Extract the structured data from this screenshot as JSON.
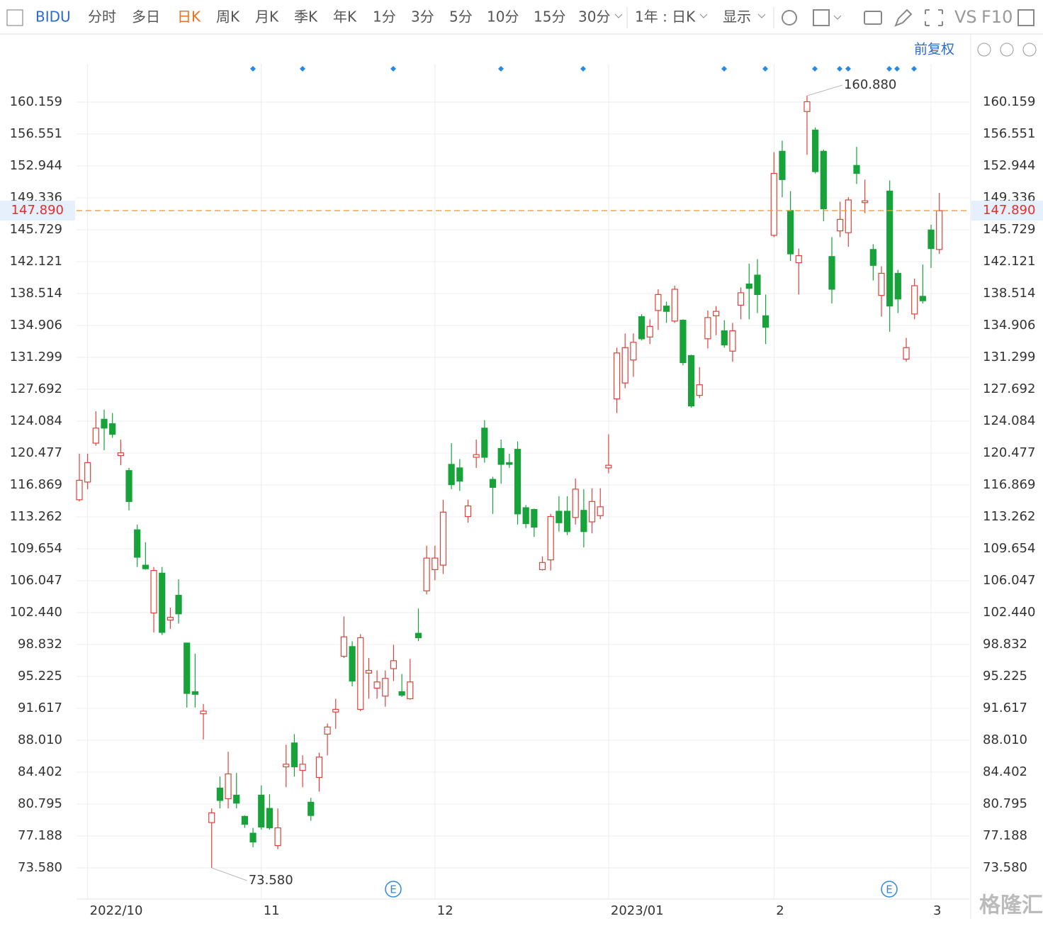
{
  "toolbar": {
    "symbol": "BIDU",
    "periods": [
      "分时",
      "多日",
      "日K",
      "周K",
      "月K",
      "季K",
      "年K",
      "1分",
      "3分",
      "5分",
      "10分",
      "15分",
      "30分"
    ],
    "range": "1年 : 日K",
    "display": "显示",
    "vs": "VS",
    "f10": "F10",
    "adjust": "前复权"
  },
  "events": [
    "E",
    "E"
  ],
  "watermark": "格隆汇",
  "chart_data": {
    "type": "candlestick",
    "categories": [
      null,
      "2022/10",
      null,
      null,
      null,
      null,
      null,
      null,
      null,
      null,
      null,
      null,
      null,
      null,
      null,
      null,
      null,
      null,
      null,
      null,
      null,
      null,
      "11",
      null,
      null,
      null,
      null,
      null,
      null,
      null,
      null,
      null,
      null,
      null,
      null,
      null,
      null,
      null,
      null,
      null,
      null,
      null,
      null,
      "12",
      null,
      null,
      null,
      null,
      null,
      null,
      null,
      null,
      null,
      null,
      null,
      null,
      null,
      null,
      null,
      null,
      null,
      null,
      null,
      null,
      "2023/01",
      null,
      null,
      null,
      null,
      null,
      null,
      null,
      null,
      null,
      null,
      null,
      null,
      null,
      null,
      null,
      null,
      null,
      null,
      null,
      "2",
      null,
      null,
      null,
      null,
      null,
      null,
      null,
      null,
      null,
      null,
      null,
      null,
      null,
      null,
      null,
      null,
      null,
      null,
      "3",
      null
    ],
    "open": [
      115.2,
      117.2,
      121.6,
      124.3,
      123.8,
      120.2,
      118.5,
      111.8,
      107.8,
      102.4,
      106.9,
      101.6,
      104.4,
      99.0,
      93.5,
      91.0,
      78.7,
      82.6,
      81.4,
      81.8,
      79.4,
      77.5,
      81.8,
      80.3,
      76.1,
      85.0,
      87.7,
      84.6,
      81.0,
      83.8,
      88.7,
      91.2,
      97.5,
      98.6,
      91.5,
      95.6,
      93.9,
      93.0,
      96.1,
      93.5,
      92.7,
      100.1,
      104.9,
      107.3,
      107.8,
      119.2,
      118.8,
      113.3,
      120.0,
      123.3,
      117.5,
      121.0,
      119.4,
      120.9,
      114.3,
      114.1,
      107.3,
      108.4,
      113.9,
      113.9,
      113.2,
      114.0,
      112.7,
      113.4,
      118.8,
      126.6,
      128.4,
      131.0,
      135.9,
      133.6,
      136.6,
      137.1,
      135.4,
      135.5,
      131.5,
      127.0,
      133.4,
      136.0,
      134.3,
      132.0,
      137.2,
      139.6,
      140.6,
      136.0,
      145.1,
      154.6,
      147.9,
      142.0,
      159.1,
      157.0,
      154.6,
      142.7,
      145.6,
      145.4,
      153.0,
      148.8,
      143.5,
      138.3,
      150.1,
      140.8,
      131.1,
      136.2,
      138.2,
      145.7,
      143.5
    ],
    "high": [
      120.4,
      120.4,
      125.2,
      125.4,
      125.0,
      122.0,
      118.8,
      112.4,
      110.4,
      107.6,
      107.6,
      103.0,
      106.2,
      99.0,
      97.8,
      92.1,
      80.3,
      83.9,
      86.7,
      84.3,
      79.5,
      78.1,
      82.9,
      81.9,
      80.3,
      87.5,
      88.7,
      86.3,
      81.5,
      86.6,
      89.9,
      92.7,
      102.0,
      99.2,
      100.0,
      97.3,
      95.9,
      95.9,
      98.8,
      95.5,
      97.2,
      102.9,
      110.0,
      110.0,
      115.2,
      121.6,
      119.8,
      115.2,
      122.0,
      124.2,
      117.8,
      122.0,
      120.4,
      121.8,
      114.6,
      114.2,
      108.8,
      113.6,
      115.6,
      115.6,
      117.6,
      116.4,
      116.5,
      116.5,
      122.6,
      132.4,
      134.0,
      134.0,
      136.2,
      135.6,
      139.0,
      137.6,
      139.4,
      135.6,
      131.6,
      130.2,
      136.6,
      137.1,
      135.5,
      135.2,
      139.2,
      141.9,
      142.4,
      138.4,
      154.5,
      155.8,
      150.1,
      143.6,
      160.88,
      157.3,
      154.8,
      144.9,
      148.9,
      149.4,
      155.1,
      151.4,
      144.1,
      141.6,
      151.3,
      141.2,
      133.5,
      140.2,
      141.8,
      146.3,
      149.9
    ],
    "low": [
      115.0,
      116.4,
      121.3,
      120.8,
      122.2,
      119.1,
      114.0,
      107.6,
      107.3,
      100.2,
      99.9,
      100.6,
      101.2,
      91.7,
      91.7,
      88.1,
      73.58,
      80.3,
      80.3,
      80.3,
      78.1,
      75.9,
      77.9,
      77.9,
      75.7,
      82.7,
      83.9,
      82.7,
      78.9,
      82.2,
      86.3,
      89.3,
      97.3,
      94.1,
      91.3,
      92.7,
      92.7,
      91.8,
      94.7,
      92.9,
      92.6,
      99.2,
      104.5,
      106.1,
      106.8,
      116.4,
      116.2,
      112.6,
      118.8,
      119.4,
      113.6,
      117.0,
      118.8,
      112.4,
      112.0,
      111.0,
      107.2,
      107.2,
      111.6,
      111.2,
      112.4,
      109.8,
      111.4,
      113.0,
      118.2,
      125.0,
      127.8,
      129.1,
      133.2,
      132.8,
      134.4,
      135.2,
      135.2,
      130.4,
      125.6,
      126.7,
      132.3,
      133.8,
      132.4,
      130.8,
      135.6,
      135.6,
      136.3,
      132.8,
      144.9,
      149.4,
      142.2,
      138.4,
      154.2,
      152.1,
      146.7,
      137.4,
      144.9,
      143.8,
      150.9,
      147.6,
      140.0,
      135.9,
      134.2,
      136.3,
      130.8,
      135.6,
      137.4,
      141.4,
      143.0
    ],
    "close": [
      117.4,
      119.4,
      123.3,
      123.3,
      122.6,
      120.5,
      115.0,
      108.7,
      107.4,
      107.2,
      100.2,
      101.9,
      102.3,
      93.3,
      93.2,
      91.3,
      79.8,
      81.2,
      84.2,
      80.9,
      78.5,
      76.5,
      78.2,
      78.1,
      78.1,
      85.3,
      85.0,
      85.3,
      79.5,
      86.1,
      89.5,
      91.5,
      99.7,
      94.7,
      99.6,
      95.9,
      94.6,
      95.0,
      97.0,
      93.1,
      94.6,
      99.6,
      108.6,
      108.6,
      113.8,
      116.9,
      117.3,
      114.5,
      120.3,
      120.0,
      116.6,
      119.2,
      119.2,
      113.6,
      112.5,
      112.1,
      108.1,
      113.3,
      112.6,
      111.6,
      116.4,
      111.6,
      115.0,
      114.4,
      119.1,
      131.8,
      132.4,
      133.0,
      133.4,
      134.8,
      138.4,
      136.5,
      139.0,
      130.7,
      125.8,
      128.2,
      135.8,
      136.5,
      132.7,
      134.3,
      138.6,
      139.1,
      138.4,
      134.7,
      152.1,
      151.4,
      143.0,
      142.8,
      160.2,
      152.3,
      148.1,
      139.0,
      146.9,
      149.1,
      152.1,
      149.0,
      141.7,
      140.8,
      137.1,
      137.9,
      132.4,
      139.4,
      137.7,
      143.6,
      147.89
    ],
    "up_color": "#e0413a",
    "down_color": "#17a33a",
    "ylim": [
      70.05,
      164.49
    ],
    "yticks": [
      {
        "value": 73.58,
        "label": "73.580"
      },
      77.188,
      80.795,
      84.402,
      {
        "value": 88.01,
        "label": "88.010"
      },
      91.617,
      95.225,
      98.832,
      {
        "value": 102.44,
        "label": "102.440"
      },
      106.047,
      109.654,
      113.262,
      116.869,
      120.477,
      124.084,
      127.692,
      131.299,
      134.906,
      138.514,
      142.121,
      145.729,
      149.336,
      152.944,
      156.551,
      160.159
    ],
    "grid": true,
    "last_price": {
      "value": 147.89,
      "label": "147.890"
    },
    "max_label": {
      "value": 160.88,
      "label": "160.880"
    },
    "min_label": {
      "value": 73.58,
      "label": "73.580"
    }
  }
}
